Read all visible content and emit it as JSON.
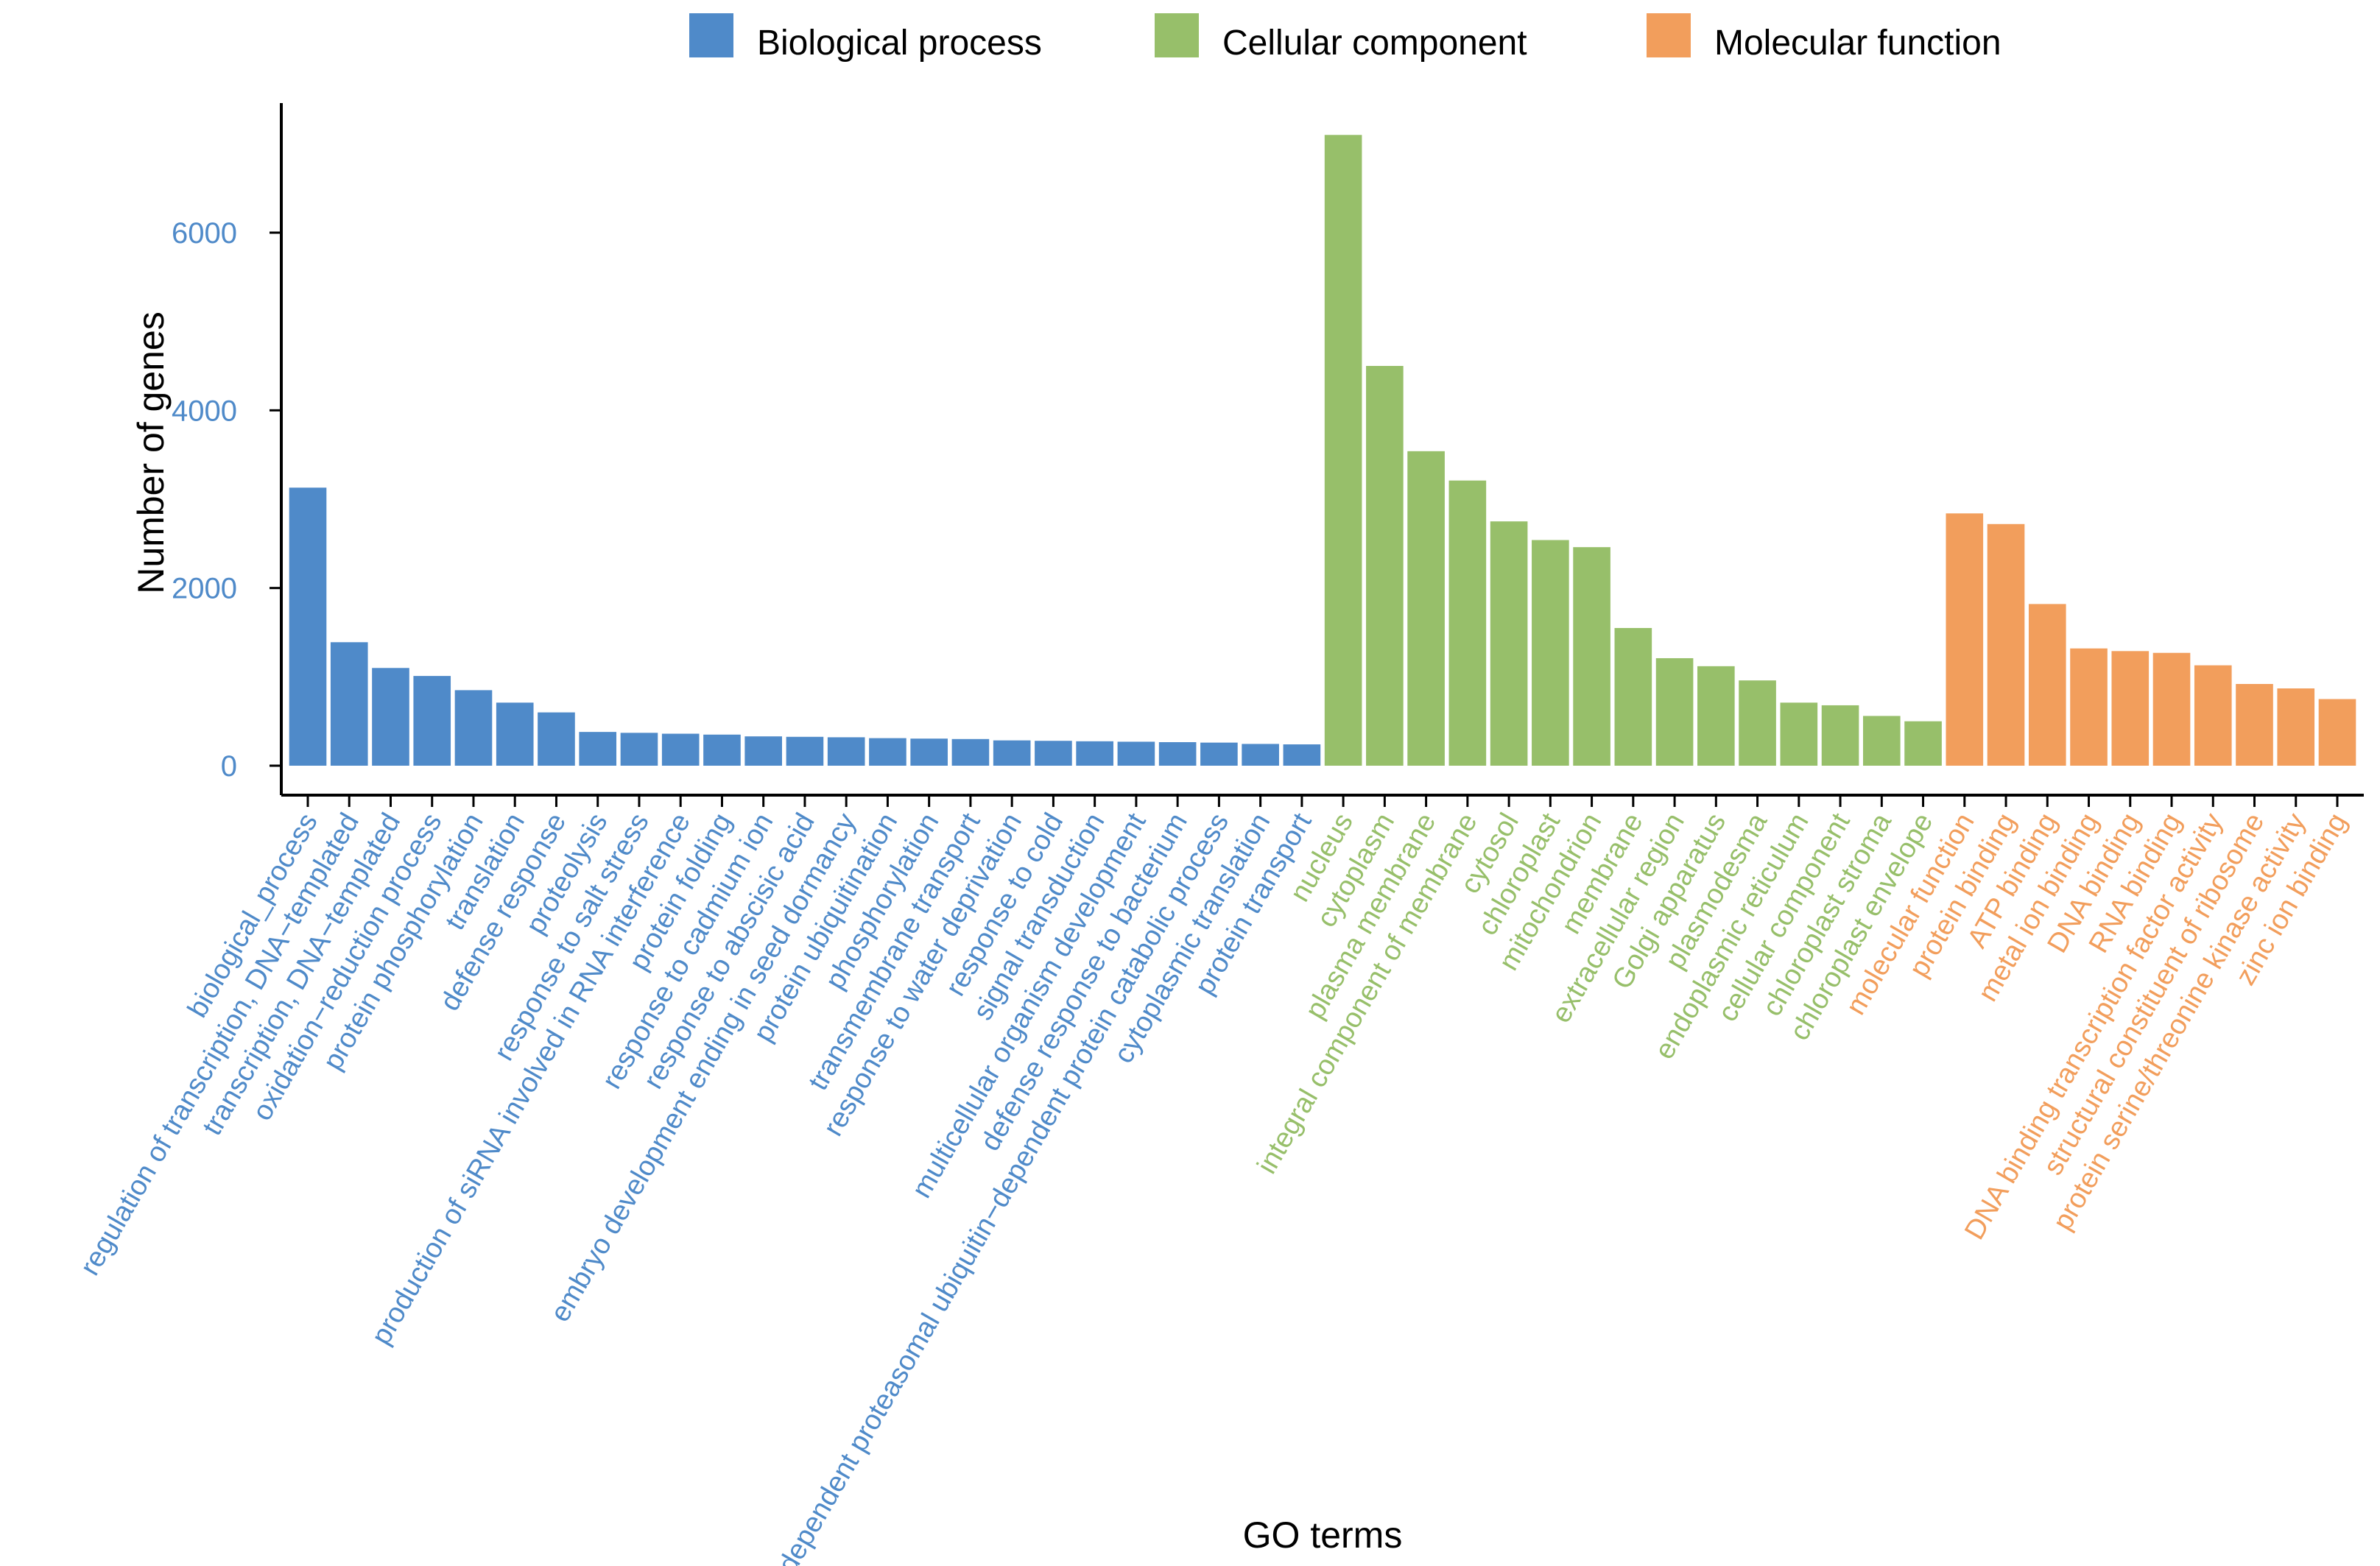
{
  "chart_data": {
    "type": "bar",
    "title": "",
    "xlabel": "GO terms",
    "ylabel": "Number of genes",
    "ylim": [
      0,
      7300
    ],
    "yticks": [
      0,
      2000,
      4000,
      6000
    ],
    "ytick_labels": [
      "0",
      "2000",
      "4000",
      "6000"
    ],
    "grid": false,
    "legend_position": "top",
    "series": [
      {
        "name": "Biological process",
        "color": "#4f8ac9",
        "categories": [
          "biological_process",
          "regulation of transcription, DNA−templated",
          "transcription, DNA−templated",
          "oxidation−reduction process",
          "protein phosphorylation",
          "translation",
          "defense response",
          "proteolysis",
          "response to salt stress",
          "production of siRNA involved in RNA interference",
          "protein folding",
          "response to cadmium ion",
          "response to abscisic acid",
          "embryo development ending in seed dormancy",
          "protein ubiquitination",
          "phosphorylation",
          "transmembrane transport",
          "response to water deprivation",
          "response to cold",
          "signal transduction",
          "multicellular organism development",
          "defense response to bacterium",
          "SCF−dependent proteasomal ubiquitin−dependent protein catabolic process",
          "cytoplasmic translation",
          "protein transport"
        ],
        "values": [
          3130,
          1390,
          1100,
          1010,
          850,
          710,
          600,
          380,
          370,
          360,
          350,
          330,
          325,
          320,
          310,
          305,
          300,
          285,
          280,
          275,
          270,
          265,
          260,
          245,
          240
        ]
      },
      {
        "name": "Cellular component",
        "color": "#97bf6a",
        "categories": [
          "nucleus",
          "cytoplasm",
          "plasma membrane",
          "integral component of membrane",
          "cytosol",
          "chloroplast",
          "mitochondrion",
          "membrane",
          "extracellular region",
          "Golgi apparatus",
          "plasmodesma",
          "endoplasmic reticulum",
          "cellular component",
          "chloroplast stroma",
          "chloroplast envelope"
        ],
        "values": [
          7100,
          4500,
          3540,
          3210,
          2750,
          2540,
          2460,
          1550,
          1210,
          1120,
          960,
          710,
          680,
          560,
          500
        ]
      },
      {
        "name": "Molecular function",
        "color": "#f29e5c",
        "categories": [
          "molecular function",
          "protein binding",
          "ATP binding",
          "metal ion binding",
          "DNA binding",
          "RNA binding",
          "DNA binding transcription factor activity",
          "structural constituent of ribosome",
          "protein serine/threonine kinase activity",
          "zinc ion binding"
        ],
        "values": [
          2840,
          2720,
          1820,
          1320,
          1290,
          1270,
          1130,
          920,
          870,
          750
        ]
      }
    ]
  }
}
